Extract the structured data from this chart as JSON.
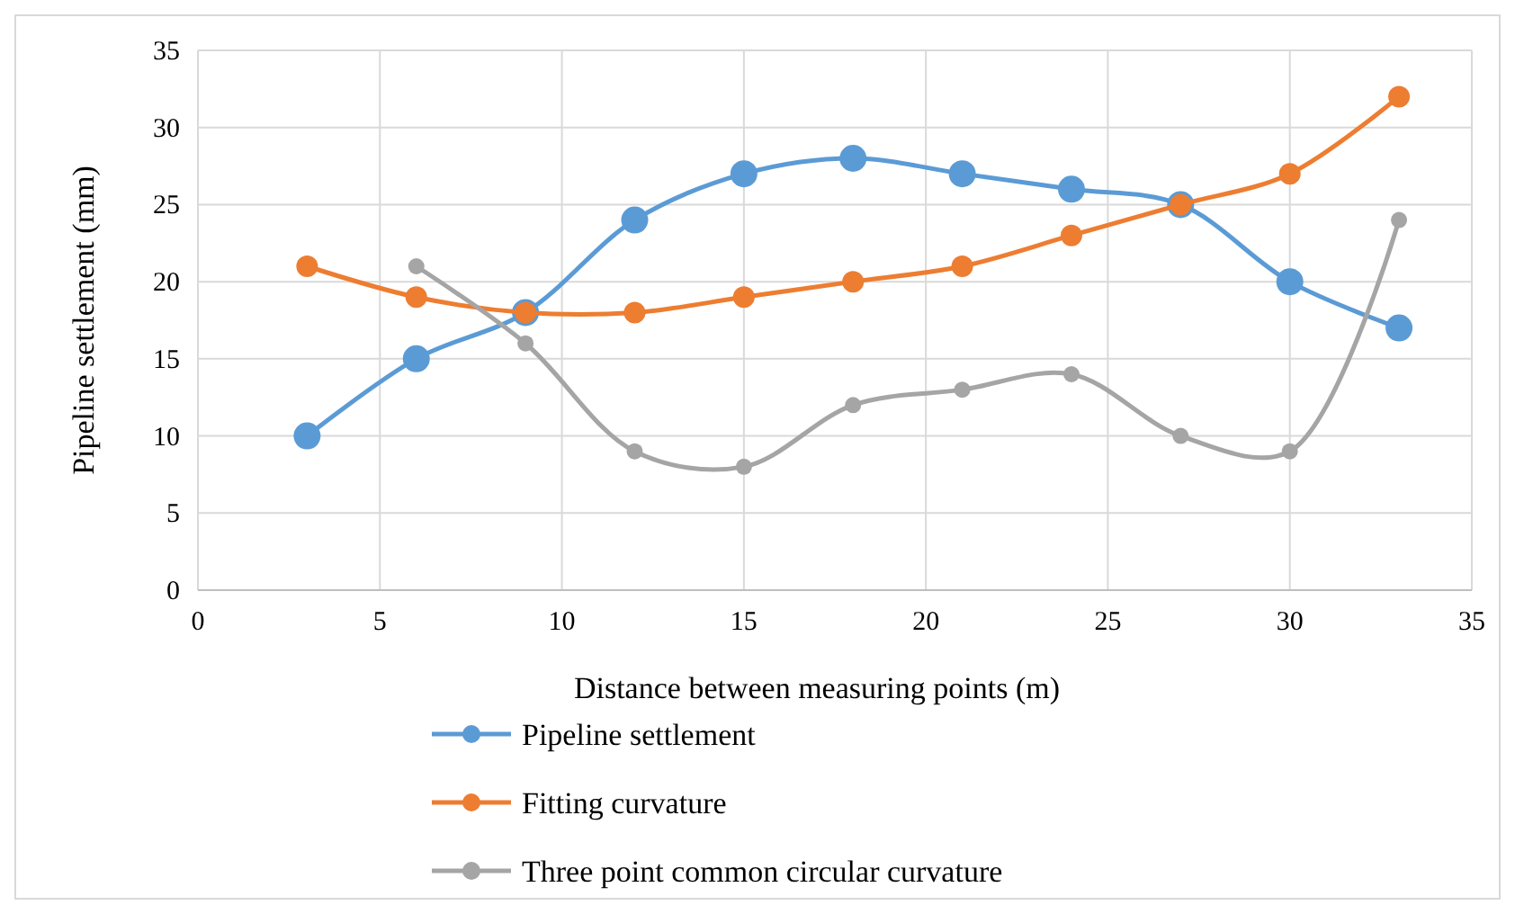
{
  "chart_data": {
    "type": "line",
    "xlabel": "Distance between measuring points (m)",
    "ylabel": "Pipeline settlement (mm)",
    "xlim": [
      0,
      35
    ],
    "xticks": [
      0,
      5,
      10,
      15,
      20,
      25,
      30,
      35
    ],
    "ylim": [
      0,
      35
    ],
    "yticks": [
      0,
      5,
      10,
      15,
      20,
      25,
      30,
      35
    ],
    "grid": true,
    "legend": "bottom",
    "marker": "circle",
    "line_style": "solid",
    "series": [
      {
        "name": "Pipeline settlement",
        "color": "#5b9bd5",
        "x": [
          3,
          6,
          9,
          12,
          15,
          18,
          21,
          24,
          27,
          30,
          33
        ],
        "values": [
          10,
          15,
          18,
          24,
          27,
          28,
          27,
          26,
          25,
          20,
          17
        ]
      },
      {
        "name": "Fitting curvature",
        "color": "#ed7d31",
        "x": [
          3,
          6,
          9,
          12,
          15,
          18,
          21,
          24,
          27,
          30,
          33
        ],
        "values": [
          21,
          19,
          18,
          18,
          19,
          20,
          21,
          23,
          25,
          27,
          32
        ]
      },
      {
        "name": "Three point common circular curvature",
        "color": "#a5a5a5",
        "x": [
          6,
          9,
          12,
          15,
          18,
          21,
          24,
          27,
          30,
          33
        ],
        "values": [
          21,
          16,
          9,
          8,
          12,
          13,
          14,
          10,
          9,
          24
        ]
      }
    ]
  }
}
